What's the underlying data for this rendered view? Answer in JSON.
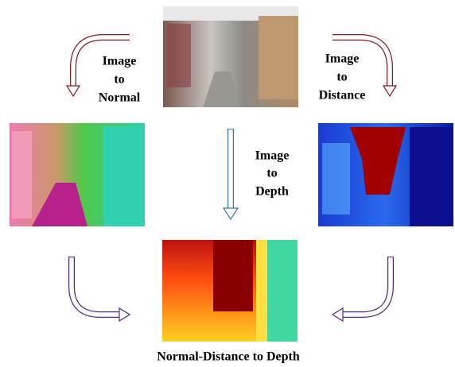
{
  "labels": [
    {
      "lines": [
        "Image",
        "to",
        "Normal"
      ]
    },
    {
      "lines": [
        "Image",
        "to",
        "Distance"
      ]
    },
    {
      "lines": [
        "Image",
        "to",
        "Depth"
      ]
    }
  ],
  "caption": "Normal-Distance to Depth"
}
